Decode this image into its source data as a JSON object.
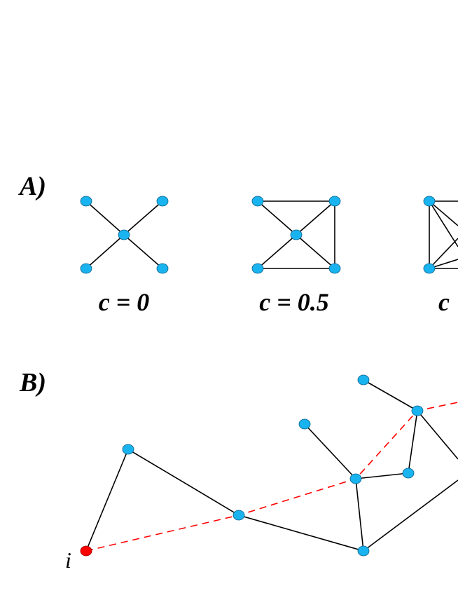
{
  "panel_a": {
    "label": "A)",
    "graphs": [
      {
        "caption": "c = 0"
      },
      {
        "caption": "c = 0.5"
      },
      {
        "caption": "c"
      }
    ]
  },
  "panel_b": {
    "label": "B)",
    "node_label": "i"
  }
}
